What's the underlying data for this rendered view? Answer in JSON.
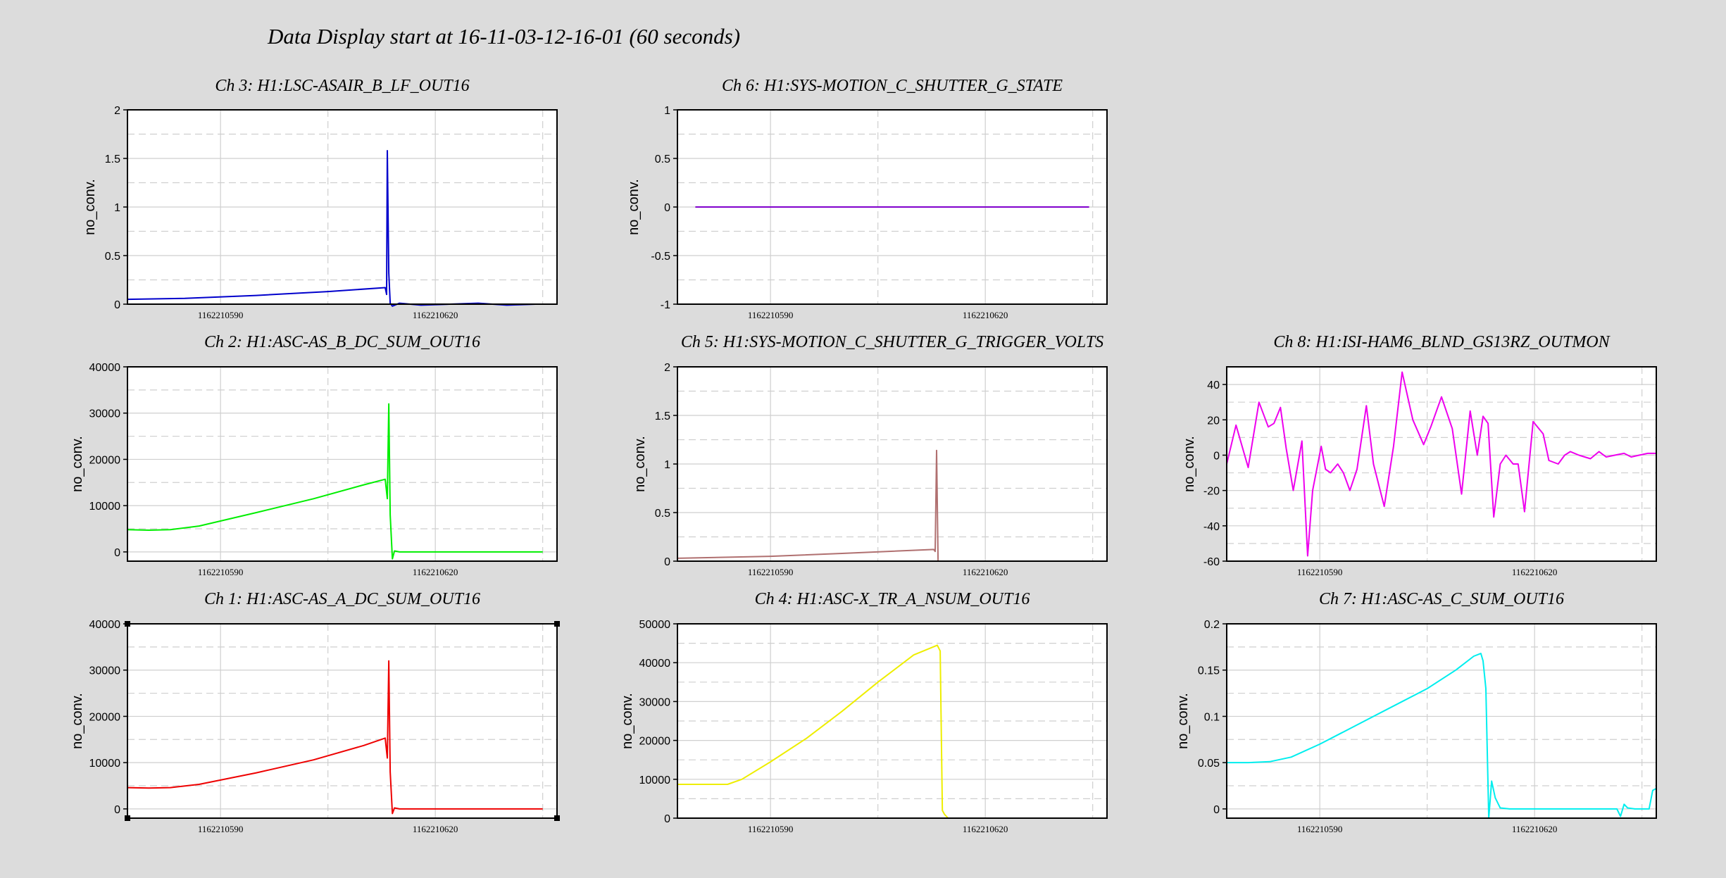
{
  "page": {
    "title": "Data Display start at 16-11-03-12-16-01 (60 seconds)"
  },
  "chart_data": [
    {
      "id": "ch3",
      "type": "line",
      "title": "Ch 3: H1:LSC-ASAIR_B_LF_OUT16",
      "ylabel": "no_conv.",
      "color": "#0000cc",
      "xlim": [
        1162210577,
        1162210637
      ],
      "ylim": [
        0,
        2
      ],
      "yticks": [
        0,
        0.5,
        1,
        1.5,
        2
      ],
      "ytick_labels": [
        "0",
        "0.5",
        "1",
        "1.5",
        "2"
      ],
      "xticks": [
        1162210590,
        1162210620
      ],
      "xtick_labels": [
        "1162210590",
        "1162210620"
      ],
      "series": [
        {
          "x": [
            1162210577,
            1162210585,
            1162210595,
            1162210605,
            1162210613,
            1162210613.2,
            1162210613.3,
            1162210613.5,
            1162210613.7,
            1162210614,
            1162210615,
            1162210618,
            1162210622,
            1162210626,
            1162210630,
            1162210634,
            1162210637
          ],
          "y": [
            0.05,
            0.06,
            0.09,
            0.13,
            0.17,
            0.1,
            1.58,
            0.32,
            0.01,
            -0.02,
            0.01,
            -0.01,
            0.0,
            0.01,
            -0.01,
            0.0,
            0.0
          ]
        }
      ]
    },
    {
      "id": "ch6",
      "type": "line",
      "title": "Ch 6: H1:SYS-MOTION_C_SHUTTER_G_STATE",
      "ylabel": "no_conv.",
      "color": "#8000cc",
      "xlim": [
        1162210577,
        1162210637
      ],
      "ylim": [
        -1,
        1
      ],
      "yticks": [
        -1,
        -0.5,
        0,
        0.5,
        1
      ],
      "ytick_labels": [
        "-1",
        "-0.5",
        "0",
        "0.5",
        "1"
      ],
      "xticks": [
        1162210590,
        1162210620
      ],
      "xtick_labels": [
        "1162210590",
        "1162210620"
      ],
      "series": [
        {
          "x": [
            1162210579.5,
            1162210634.5
          ],
          "y": [
            0,
            0
          ]
        }
      ]
    },
    {
      "id": "ch2",
      "type": "line",
      "title": "Ch 2: H1:ASC-AS_B_DC_SUM_OUT16",
      "ylabel": "no_conv.",
      "color": "#00ee00",
      "xlim": [
        1162210577,
        1162210637
      ],
      "ylim": [
        -2000,
        40000
      ],
      "yticks": [
        0,
        10000,
        20000,
        30000,
        40000
      ],
      "ytick_labels": [
        "0",
        "10000",
        "20000",
        "30000",
        "40000"
      ],
      "xticks": [
        1162210590,
        1162210620
      ],
      "xtick_labels": [
        "1162210590",
        "1162210620"
      ],
      "series": [
        {
          "x": [
            1162210577,
            1162210580,
            1162210583,
            1162210587,
            1162210595,
            1162210603,
            1162210610,
            1162210613,
            1162210613.3,
            1162210613.5,
            1162210613.7,
            1162210614,
            1162210614.3,
            1162210615,
            1162210620,
            1162210635
          ],
          "y": [
            4800,
            4700,
            4800,
            5600,
            8500,
            11500,
            14500,
            15700,
            11500,
            32000,
            8000,
            -1500,
            200,
            0,
            0,
            0
          ]
        }
      ]
    },
    {
      "id": "ch5",
      "type": "line",
      "title": "Ch 5: H1:SYS-MOTION_C_SHUTTER_G_TRIGGER_VOLTS",
      "ylabel": "no_conv.",
      "color": "#b07070",
      "xlim": [
        1162210577,
        1162210637
      ],
      "ylim": [
        0,
        2
      ],
      "yticks": [
        0,
        0.5,
        1,
        1.5,
        2
      ],
      "ytick_labels": [
        "0",
        "0.5",
        "1",
        "1.5",
        "2"
      ],
      "xticks": [
        1162210590,
        1162210620
      ],
      "xtick_labels": [
        "1162210590",
        "1162210620"
      ],
      "series": [
        {
          "x": [
            1162210577,
            1162210590,
            1162210600,
            1162210612.8,
            1162210613,
            1162210613.2,
            1162210613.4,
            1162210615,
            1162210637
          ],
          "y": [
            0.03,
            0.05,
            0.08,
            0.12,
            0.1,
            1.14,
            0.0,
            0.0,
            0.0
          ]
        }
      ]
    },
    {
      "id": "ch8",
      "type": "line",
      "title": "Ch 8: H1:ISI-HAM6_BLND_GS13RZ_OUTMON",
      "ylabel": "no_conv.",
      "color": "#ee00ee",
      "xlim": [
        1162210577,
        1162210637
      ],
      "ylim": [
        -60,
        50
      ],
      "yticks": [
        -60,
        -40,
        -20,
        0,
        20,
        40
      ],
      "ytick_labels": [
        "-60",
        "-40",
        "-20",
        "0",
        "20",
        "40"
      ],
      "xticks": [
        1162210590,
        1162210620
      ],
      "xtick_labels": [
        "1162210590",
        "1162210620"
      ],
      "series": [
        {
          "x": [
            1162210577,
            1162210578.3,
            1162210580,
            1162210581.5,
            1162210582.8,
            1162210583.6,
            1162210584.5,
            1162210585.3,
            1162210586.3,
            1162210587.5,
            1162210588.3,
            1162210589,
            1162210590.2,
            1162210590.8,
            1162210591.5,
            1162210592.5,
            1162210593.3,
            1162210594.2,
            1162210595.2,
            1162210596.5,
            1162210597.5,
            1162210599,
            1162210600.3,
            1162210601.5,
            1162210603,
            1162210604.5,
            1162210605.5,
            1162210607,
            1162210608.5,
            1162210609.8,
            1162210611,
            1162210612,
            1162210612.8,
            1162210613.5,
            1162210614.3,
            1162210615.2,
            1162210616,
            1162210617,
            1162210617.7,
            1162210618.6,
            1162210619.8,
            1162210621.2,
            1162210622,
            1162210623.3,
            1162210624.2,
            1162210625,
            1162210626.2,
            1162210627.8,
            1162210629,
            1162210630,
            1162210631.2,
            1162210632.5,
            1162210633.5,
            1162210634.6,
            1162210635.8,
            1162210637
          ],
          "y": [
            -5,
            17,
            -7,
            30,
            16,
            18,
            27,
            4,
            -20,
            8,
            -57,
            -20,
            5,
            -8,
            -10,
            -5,
            -10,
            -20,
            -8,
            28,
            -5,
            -29,
            5,
            47,
            20,
            6,
            16,
            33,
            15,
            -22,
            25,
            0,
            22,
            18,
            -35,
            -5,
            0,
            -5,
            -5,
            -32,
            19,
            12,
            -3,
            -5,
            0,
            2,
            0,
            -2,
            2,
            -1,
            0,
            1,
            -1,
            0,
            1,
            1
          ]
        }
      ]
    },
    {
      "id": "ch1",
      "type": "line",
      "title": "Ch 1: H1:ASC-AS_A_DC_SUM_OUT16",
      "ylabel": "no_conv.",
      "color": "#ee0000",
      "xlim": [
        1162210577,
        1162210637
      ],
      "ylim": [
        -2000,
        40000
      ],
      "yticks": [
        0,
        10000,
        20000,
        30000,
        40000
      ],
      "ytick_labels": [
        "0",
        "10000",
        "20000",
        "30000",
        "40000"
      ],
      "xticks": [
        1162210590,
        1162210620
      ],
      "xtick_labels": [
        "1162210590",
        "1162210620"
      ],
      "series": [
        {
          "x": [
            1162210577,
            1162210580,
            1162210583,
            1162210587,
            1162210595,
            1162210603,
            1162210610,
            1162210613,
            1162210613.3,
            1162210613.5,
            1162210613.7,
            1162210614,
            1162210614.3,
            1162210615,
            1162210620,
            1162210635
          ],
          "y": [
            4600,
            4500,
            4600,
            5300,
            7800,
            10600,
            13700,
            15300,
            11000,
            32000,
            8000,
            -1000,
            200,
            0,
            0,
            0
          ]
        }
      ]
    },
    {
      "id": "ch4",
      "type": "line",
      "title": "Ch 4: H1:ASC-X_TR_A_NSUM_OUT16",
      "ylabel": "no_conv.",
      "color": "#eeee00",
      "xlim": [
        1162210577,
        1162210637
      ],
      "ylim": [
        0,
        50000
      ],
      "yticks": [
        0,
        10000,
        20000,
        30000,
        40000,
        50000
      ],
      "ytick_labels": [
        "0",
        "10000",
        "20000",
        "30000",
        "40000",
        "50000"
      ],
      "xticks": [
        1162210590,
        1162210620
      ],
      "xtick_labels": [
        "1162210590",
        "1162210620"
      ],
      "series": [
        {
          "x": [
            1162210577,
            1162210584,
            1162210586,
            1162210590,
            1162210595,
            1162210600,
            1162210605,
            1162210610,
            1162210613.3,
            1162210613.7,
            1162210614,
            1162210614.3,
            1162210614.8
          ],
          "y": [
            8700,
            8700,
            10000,
            14500,
            20500,
            27500,
            35000,
            42000,
            44500,
            43000,
            2000,
            1000,
            0
          ]
        }
      ]
    },
    {
      "id": "ch7",
      "type": "line",
      "title": "Ch 7: H1:ASC-AS_C_SUM_OUT16",
      "ylabel": "no_conv.",
      "color": "#00eeee",
      "xlim": [
        1162210577,
        1162210637
      ],
      "ylim": [
        -0.01,
        0.2
      ],
      "yticks": [
        0,
        0.05,
        0.1,
        0.15,
        0.2
      ],
      "ytick_labels": [
        "0",
        "0.05",
        "0.1",
        "0.15",
        "0.2"
      ],
      "xticks": [
        1162210590,
        1162210620
      ],
      "xtick_labels": [
        "1162210590",
        "1162210620"
      ],
      "series": [
        {
          "x": [
            1162210577,
            1162210580,
            1162210583,
            1162210586,
            1162210590,
            1162210595,
            1162210600,
            1162210605,
            1162210609,
            1162210611.5,
            1162210612.5,
            1162210612.8,
            1162210613.2,
            1162210613.6,
            1162210614,
            1162210614.5,
            1162210615.2,
            1162210616.5,
            1162210620,
            1162210630,
            1162210631.5,
            1162210632,
            1162210632.5,
            1162210633,
            1162210634,
            1162210636,
            1162210636.5,
            1162210637
          ],
          "y": [
            0.05,
            0.05,
            0.051,
            0.056,
            0.07,
            0.09,
            0.11,
            0.13,
            0.15,
            0.165,
            0.168,
            0.16,
            0.13,
            -0.01,
            0.03,
            0.012,
            0.001,
            0.0,
            0.0,
            0.0,
            0.0,
            -0.008,
            0.005,
            0.001,
            0.0,
            0.0,
            0.02,
            0.022
          ]
        }
      ]
    }
  ]
}
